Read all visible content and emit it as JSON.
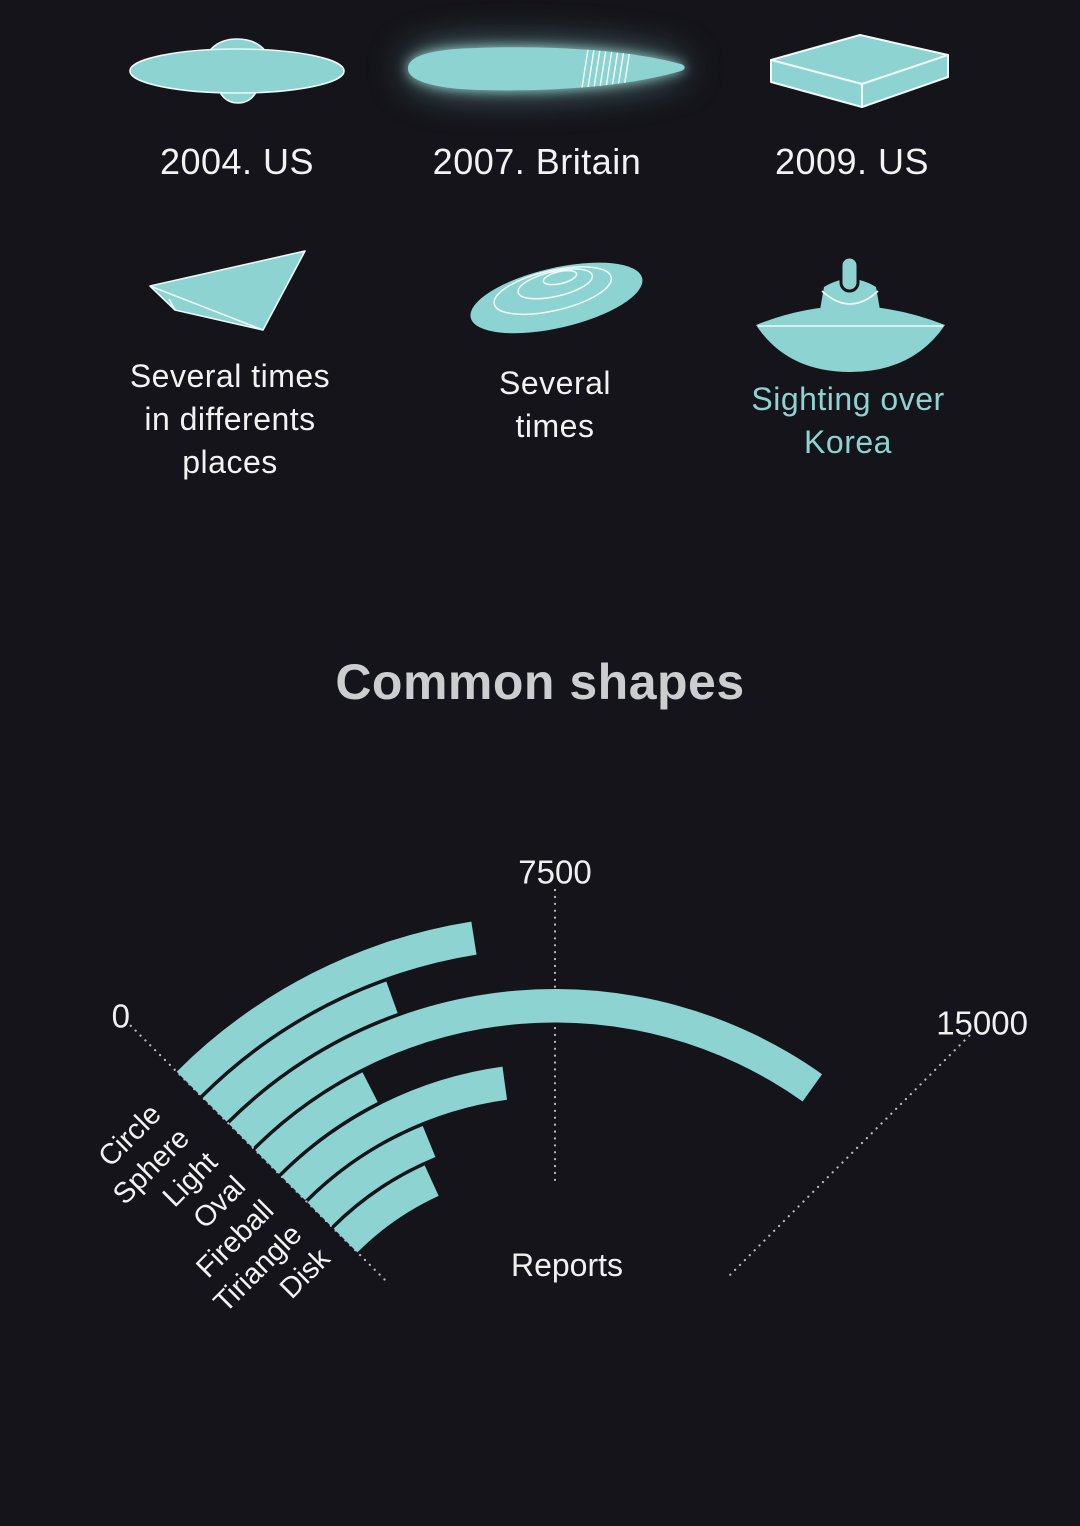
{
  "page": {
    "background": "#14141a"
  },
  "colors": {
    "accent": "#8cd3d1",
    "title_text": "#cbcdcf",
    "body_text": "#f2f2f3",
    "dotted_line": "#b8bcbc",
    "icon_edge": "#eaf8f7"
  },
  "sightings": {
    "items": [
      {
        "label": "2004. US",
        "icon": "saucer-icon"
      },
      {
        "label": "2007. Britain",
        "icon": "cigar-icon"
      },
      {
        "label": "2009. US",
        "icon": "box-icon"
      },
      {
        "label": "Several times\nin differents\nplaces",
        "icon": "triangle-wedge-icon"
      },
      {
        "label": "Several\ntimes",
        "icon": "ringed-disk-icon"
      },
      {
        "label": "Sighting over\nKorea",
        "icon": "dome-saucer-icon"
      }
    ]
  },
  "section_title": "Common shapes",
  "chart_data": {
    "type": "radial-bar",
    "title": "Common shapes",
    "categories": [
      "Circle",
      "Sphere",
      "Light",
      "Oval",
      "Fireball",
      "Tiriangle",
      "Disk"
    ],
    "values": [
      6000,
      4200,
      13400,
      3000,
      6200,
      3800,
      3400
    ],
    "series_label": "Reports",
    "axis": {
      "min": 0,
      "max": 15000,
      "tick_values": [
        0,
        7500,
        15000
      ],
      "tick_labels": [
        "0",
        "7500",
        "15000"
      ]
    },
    "start_angle_deg": 135,
    "end_angle_deg": 45,
    "bar_color": "#8cd3d1",
    "grid": "dotted-radial-ticks",
    "legend": "none"
  }
}
